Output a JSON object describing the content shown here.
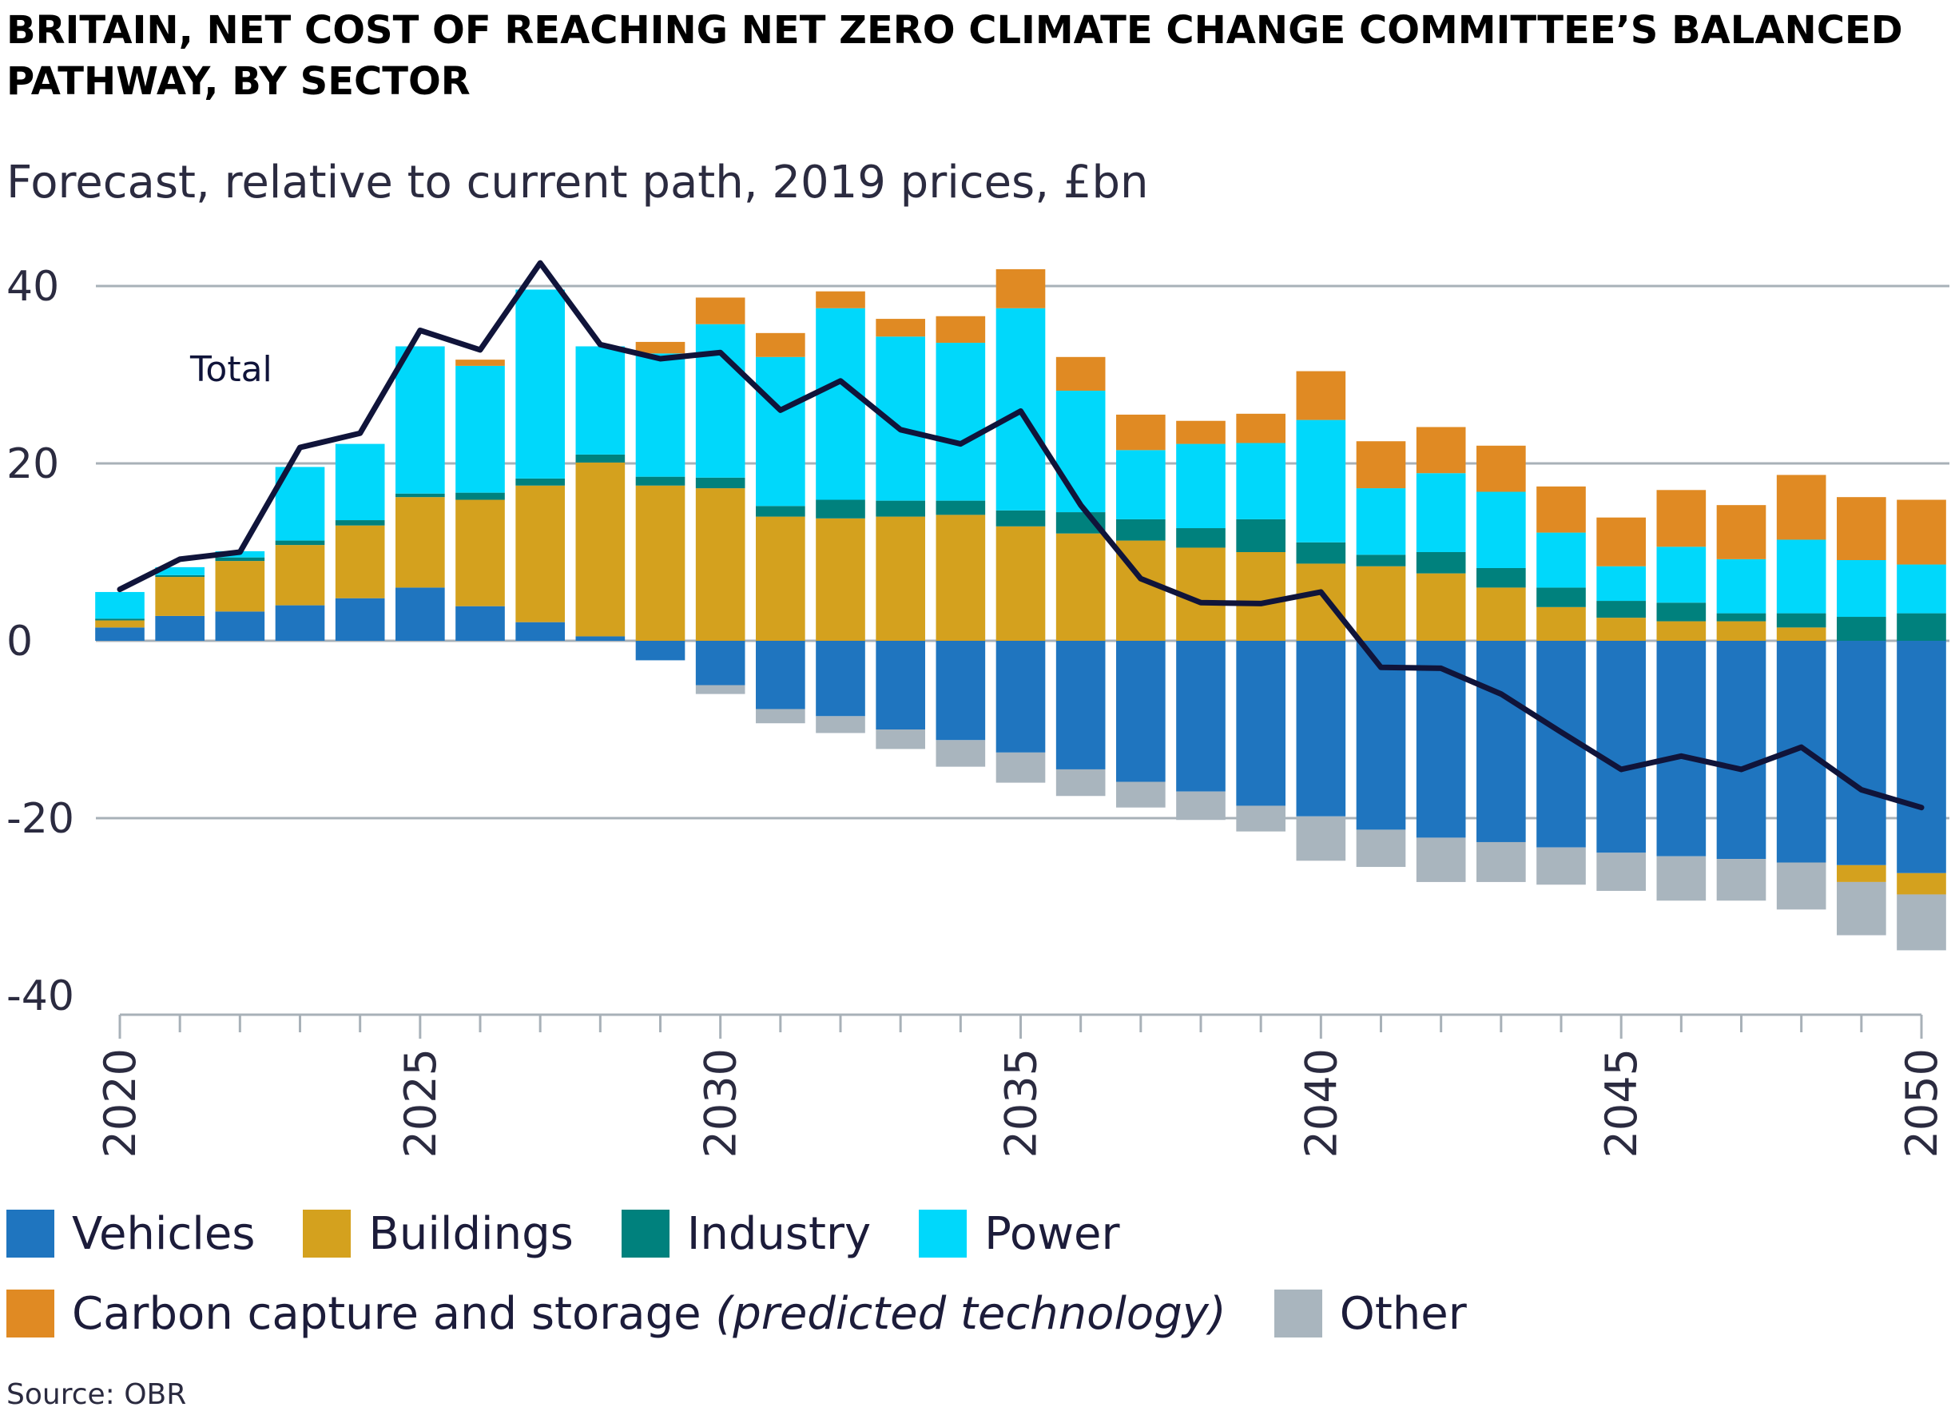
{
  "title": "BRITAIN, NET COST OF REACHING NET ZERO CLIMATE CHANGE COMMITTEE’S BALANCED PATHWAY, BY SECTOR",
  "subtitle": "Forecast, relative to current path, 2019 prices, £bn",
  "source": "Source: OBR",
  "legend": {
    "vehicles": "Vehicles",
    "buildings": "Buildings",
    "industry": "Industry",
    "power": "Power",
    "ccs": "Carbon capture and storage",
    "ccs_note": "(predicted technology)",
    "other": "Other"
  },
  "colors": {
    "vehicles": "#1f75bf",
    "buildings": "#d4a11e",
    "industry": "#00817d",
    "power": "#00d8fb",
    "ccs": "#e08a23",
    "other": "#a9b5be",
    "total": "#10143a",
    "grid": "#a8b1b8"
  },
  "chart_data": {
    "type": "bar",
    "stacked": true,
    "ylim": [
      -40,
      40
    ],
    "yticks": [
      -40,
      -20,
      0,
      20,
      40
    ],
    "xlim": [
      2020,
      2050
    ],
    "xticks": [
      2020,
      2025,
      2030,
      2035,
      2040,
      2045,
      2050
    ],
    "grid": "horizontal",
    "line_label": "Total",
    "x": [
      2020,
      2021,
      2022,
      2023,
      2024,
      2025,
      2026,
      2027,
      2028,
      2029,
      2030,
      2031,
      2032,
      2033,
      2034,
      2035,
      2036,
      2037,
      2038,
      2039,
      2040,
      2041,
      2042,
      2043,
      2044,
      2045,
      2046,
      2047,
      2048,
      2049,
      2050
    ],
    "series": [
      {
        "key": "vehicles",
        "values": [
          1.5,
          2.8,
          3.3,
          4.0,
          4.8,
          6.0,
          3.9,
          2.1,
          0.5,
          -2.2,
          -5.0,
          -7.7,
          -8.5,
          -10.0,
          -11.2,
          -12.6,
          -14.5,
          -15.9,
          -17.0,
          -18.6,
          -19.8,
          -21.3,
          -22.2,
          -22.7,
          -23.3,
          -23.9,
          -24.3,
          -24.6,
          -25.0,
          -25.3,
          -26.2
        ]
      },
      {
        "key": "buildings",
        "values": [
          0.8,
          4.4,
          5.7,
          6.8,
          8.2,
          10.2,
          12.0,
          15.4,
          19.6,
          17.5,
          17.2,
          14.0,
          13.8,
          14.0,
          14.2,
          12.9,
          12.1,
          11.3,
          10.5,
          10.0,
          8.7,
          8.4,
          7.6,
          6.0,
          3.8,
          2.6,
          2.2,
          2.2,
          1.5,
          -1.9,
          -2.4
        ]
      },
      {
        "key": "industry",
        "values": [
          0.2,
          0.2,
          0.4,
          0.5,
          0.6,
          0.4,
          0.8,
          0.8,
          0.9,
          1.0,
          1.2,
          1.2,
          2.1,
          1.8,
          1.6,
          1.8,
          2.4,
          2.4,
          2.2,
          3.7,
          2.4,
          1.3,
          2.4,
          2.2,
          2.2,
          1.9,
          2.1,
          0.9,
          1.6,
          2.7,
          3.1
        ]
      },
      {
        "key": "power",
        "values": [
          3.0,
          0.9,
          0.7,
          8.3,
          8.6,
          16.6,
          14.3,
          21.3,
          12.2,
          13.9,
          17.3,
          16.8,
          21.6,
          18.5,
          17.8,
          22.8,
          13.7,
          7.8,
          9.5,
          8.6,
          13.8,
          7.5,
          8.9,
          8.6,
          6.2,
          3.9,
          6.3,
          6.1,
          8.3,
          6.4,
          5.5
        ]
      },
      {
        "key": "ccs",
        "values": [
          0,
          0,
          0,
          0,
          0,
          0,
          0.7,
          0,
          0,
          1.3,
          3.0,
          2.7,
          1.9,
          2.0,
          3.0,
          4.4,
          3.8,
          4.0,
          2.6,
          3.3,
          5.5,
          5.3,
          5.2,
          5.2,
          5.2,
          5.5,
          6.4,
          6.1,
          7.3,
          7.1,
          7.3
        ]
      },
      {
        "key": "other",
        "values": [
          0,
          0,
          0,
          0,
          0,
          0,
          0,
          0,
          0,
          0,
          -1.0,
          -1.6,
          -1.9,
          -2.2,
          -3.0,
          -3.4,
          -3.0,
          -2.9,
          -3.2,
          -2.9,
          -5.0,
          -4.2,
          -5.0,
          -4.5,
          -4.2,
          -4.3,
          -5.0,
          -4.7,
          -5.3,
          -6.0,
          -6.3
        ]
      }
    ],
    "total": [
      5.8,
      9.2,
      10.0,
      21.8,
      23.4,
      35.0,
      32.8,
      42.6,
      33.4,
      31.8,
      32.5,
      26.0,
      29.3,
      23.8,
      22.2,
      25.9,
      15.3,
      7.0,
      4.3,
      4.2,
      5.5,
      -3.0,
      -3.1,
      -6.0,
      -10.3,
      -14.5,
      -13.0,
      -14.5,
      -12.0,
      -16.8,
      -18.8
    ]
  }
}
